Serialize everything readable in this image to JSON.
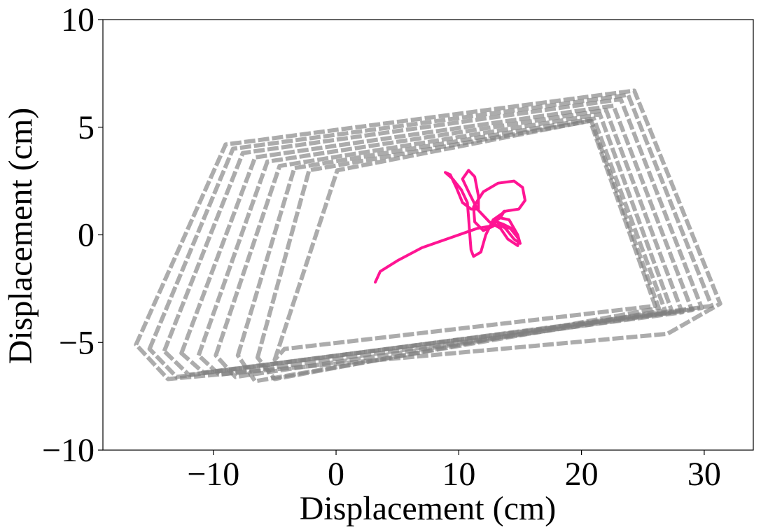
{
  "chart_data": {
    "type": "line",
    "title": "",
    "xlabel": "Displacement (cm)",
    "ylabel": "Displacement (cm)",
    "xlim": [
      -19,
      34
    ],
    "ylim": [
      -10,
      10
    ],
    "xticks": [
      -10,
      0,
      10,
      20,
      30
    ],
    "yticks": [
      -10,
      -5,
      0,
      5,
      10
    ],
    "grid": false,
    "legend": "none",
    "series": [
      {
        "style": "quadrilateral-boundary-outlines",
        "color": "#808080",
        "outlines": [
          [
            [
              -16.3,
              -5.1
            ],
            [
              -9.0,
              4.2
            ],
            [
              24.3,
              6.7
            ],
            [
              31.3,
              -3.2
            ],
            [
              27.0,
              -4.6
            ],
            [
              -13.7,
              -6.7
            ]
          ],
          [
            [
              -15.2,
              -5.3
            ],
            [
              -8.4,
              4.0
            ],
            [
              23.8,
              6.5
            ],
            [
              30.6,
              -3.3
            ],
            [
              -13.0,
              -6.6
            ]
          ],
          [
            [
              -14.0,
              -5.4
            ],
            [
              -7.6,
              3.8
            ],
            [
              23.2,
              6.3
            ],
            [
              29.8,
              -3.4
            ],
            [
              -12.0,
              -6.5
            ]
          ],
          [
            [
              -12.6,
              -5.5
            ],
            [
              -6.6,
              3.6
            ],
            [
              22.6,
              6.0
            ],
            [
              29.0,
              -3.5
            ],
            [
              -10.8,
              -6.4
            ]
          ],
          [
            [
              -11.2,
              -5.6
            ],
            [
              -5.6,
              3.4
            ],
            [
              22.0,
              5.8
            ],
            [
              28.2,
              -3.6
            ],
            [
              -9.5,
              -6.5
            ]
          ],
          [
            [
              -9.8,
              -5.6
            ],
            [
              -4.6,
              3.2
            ],
            [
              21.5,
              5.6
            ],
            [
              27.4,
              -3.6
            ],
            [
              -8.2,
              -6.6
            ]
          ],
          [
            [
              -8.0,
              -5.6
            ],
            [
              -3.4,
              3.1
            ],
            [
              21.0,
              5.4
            ],
            [
              26.8,
              -3.5
            ],
            [
              -6.6,
              -6.8
            ]
          ],
          [
            [
              -6.4,
              -5.7
            ],
            [
              -2.2,
              3.0
            ],
            [
              20.8,
              5.3
            ],
            [
              26.3,
              -3.4
            ],
            [
              -5.0,
              -6.7
            ]
          ],
          [
            [
              -5.0,
              -5.8
            ],
            [
              0.1,
              3.0
            ],
            [
              20.7,
              5.3
            ],
            [
              26.0,
              -3.3
            ],
            [
              -4.2,
              -5.3
            ]
          ]
        ]
      },
      {
        "style": "trajectory",
        "color": "#ff1493",
        "points": [
          [
            3.2,
            -2.2
          ],
          [
            3.6,
            -1.7
          ],
          [
            5.0,
            -1.2
          ],
          [
            7.0,
            -0.6
          ],
          [
            9.0,
            -0.2
          ],
          [
            11.5,
            0.3
          ],
          [
            13.0,
            0.45
          ],
          [
            14.2,
            0.3
          ],
          [
            14.9,
            -0.2
          ],
          [
            14.8,
            -0.5
          ],
          [
            14.0,
            -0.2
          ],
          [
            13.4,
            0.3
          ],
          [
            12.5,
            0.6
          ],
          [
            11.5,
            1.2
          ],
          [
            10.8,
            2.0
          ],
          [
            10.3,
            2.6
          ],
          [
            10.8,
            3.0
          ],
          [
            11.3,
            2.7
          ],
          [
            11.6,
            1.8
          ],
          [
            11.6,
            1.2
          ],
          [
            11.0,
            1.2
          ],
          [
            10.3,
            1.5
          ],
          [
            9.8,
            2.2
          ],
          [
            9.3,
            2.8
          ],
          [
            8.9,
            2.9
          ],
          [
            9.5,
            2.6
          ],
          [
            10.2,
            2.1
          ],
          [
            10.7,
            1.5
          ],
          [
            10.8,
            0.8
          ],
          [
            10.9,
            0.0
          ],
          [
            11.0,
            -0.7
          ],
          [
            11.2,
            -1.0
          ],
          [
            11.8,
            -0.8
          ],
          [
            12.2,
            0.0
          ],
          [
            12.8,
            0.7
          ],
          [
            13.8,
            1.1
          ],
          [
            14.9,
            1.2
          ],
          [
            15.4,
            1.6
          ],
          [
            15.2,
            2.2
          ],
          [
            14.5,
            2.5
          ],
          [
            13.2,
            2.4
          ],
          [
            12.0,
            2.0
          ],
          [
            11.2,
            1.3
          ],
          [
            11.3,
            0.6
          ],
          [
            12.0,
            0.2
          ],
          [
            12.8,
            0.4
          ],
          [
            13.4,
            0.9
          ],
          [
            13.7,
            1.1
          ],
          [
            13.4,
            0.8
          ],
          [
            12.9,
            0.6
          ],
          [
            13.3,
            0.8
          ],
          [
            14.1,
            0.7
          ],
          [
            14.8,
            0.0
          ],
          [
            15.0,
            -0.4
          ],
          [
            14.5,
            -0.2
          ],
          [
            13.8,
            0.3
          ],
          [
            13.1,
            0.6
          ],
          [
            13.6,
            0.5
          ],
          [
            14.3,
            0.3
          ]
        ]
      }
    ]
  }
}
